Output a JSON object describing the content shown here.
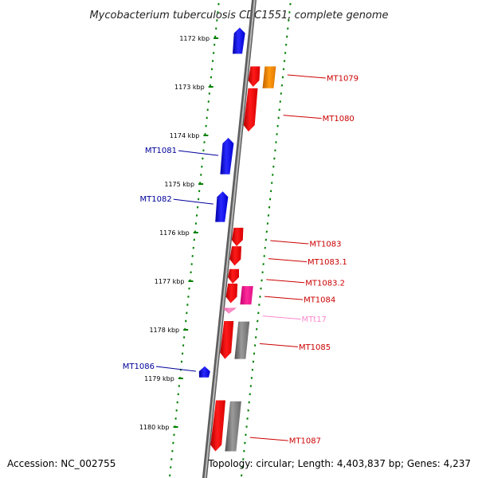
{
  "title": "Mycobacterium tuberculosis CDC1551, complete genome",
  "accession": "Accession: NC_002755",
  "topology": "Topology: circular; Length: 4,403,837 bp; Genes: 4,237",
  "colors": {
    "backbone": "#808080",
    "ticks": "#008000",
    "minus_strand_gene": "#0000ff",
    "plus_strand_gene": "#ff0000",
    "orange_feature": "#ff8c00",
    "magenta_feature": "#ff1493",
    "trna": "#ff69b4",
    "gray_feature": "#808080",
    "label_red": "#cc0000",
    "label_blue": "#000099",
    "label_pink": "#ff88cc"
  },
  "kbp_ticks": [
    {
      "label": "1172 kbp",
      "kbp": 1172
    },
    {
      "label": "1173 kbp",
      "kbp": 1173
    },
    {
      "label": "1174 kbp",
      "kbp": 1174
    },
    {
      "label": "1175 kbp",
      "kbp": 1175
    },
    {
      "label": "1176 kbp",
      "kbp": 1176
    },
    {
      "label": "1177 kbp",
      "kbp": 1177
    },
    {
      "label": "1178 kbp",
      "kbp": 1178
    },
    {
      "label": "1179 kbp",
      "kbp": 1179
    },
    {
      "label": "1180 kbp",
      "kbp": 1180
    }
  ],
  "features": [
    {
      "name": "",
      "strand": "minus",
      "color": "blue",
      "start_kbp": 1171.78,
      "end_kbp": 1172.32,
      "label_kbp": null
    },
    {
      "name": "MT1079",
      "strand": "plus",
      "color": "red",
      "start_kbp": 1172.58,
      "end_kbp": 1173.0,
      "label_kbp": 1172.82
    },
    {
      "name": "",
      "strand": "plus2",
      "color": "orange",
      "start_kbp": 1172.58,
      "end_kbp": 1173.03,
      "label_kbp": null
    },
    {
      "name": "MT1080",
      "strand": "plus",
      "color": "red",
      "start_kbp": 1173.03,
      "end_kbp": 1173.92,
      "label_kbp": 1173.65
    },
    {
      "name": "MT1081",
      "strand": "minus",
      "color": "blue",
      "start_kbp": 1174.05,
      "end_kbp": 1174.8,
      "label_kbp": 1174.38
    },
    {
      "name": "MT1082",
      "strand": "minus",
      "color": "blue",
      "start_kbp": 1175.15,
      "end_kbp": 1175.78,
      "label_kbp": 1175.38
    },
    {
      "name": "MT1083",
      "strand": "plus",
      "color": "red",
      "start_kbp": 1175.9,
      "end_kbp": 1176.28,
      "label_kbp": 1176.23
    },
    {
      "name": "MT1083.1",
      "strand": "plus",
      "color": "red",
      "start_kbp": 1176.28,
      "end_kbp": 1176.68,
      "label_kbp": 1176.6
    },
    {
      "name": "MT1083.2",
      "strand": "plus",
      "color": "red",
      "start_kbp": 1176.75,
      "end_kbp": 1177.05,
      "label_kbp": 1177.03
    },
    {
      "name": "MT1084",
      "strand": "plus",
      "color": "red",
      "start_kbp": 1177.05,
      "end_kbp": 1177.45,
      "label_kbp": 1177.38
    },
    {
      "name": "",
      "strand": "plus2",
      "color": "magenta",
      "start_kbp": 1177.1,
      "end_kbp": 1177.48,
      "label_kbp": null
    },
    {
      "name": "MTt17",
      "strand": "plus",
      "color": "trna",
      "start_kbp": 1177.58,
      "end_kbp": 1177.66,
      "label_kbp": 1177.78
    },
    {
      "name": "MT1085",
      "strand": "plus",
      "color": "red",
      "start_kbp": 1177.82,
      "end_kbp": 1178.6,
      "label_kbp": 1178.35
    },
    {
      "name": "",
      "strand": "plus2",
      "color": "gray",
      "start_kbp": 1177.83,
      "end_kbp": 1178.6,
      "label_kbp": null
    },
    {
      "name": "MT1086",
      "strand": "minus",
      "color": "blue",
      "start_kbp": 1178.75,
      "end_kbp": 1178.98,
      "label_kbp": 1178.82
    },
    {
      "name": "MT1087",
      "strand": "plus",
      "color": "red",
      "start_kbp": 1179.45,
      "end_kbp": 1180.5,
      "label_kbp": 1180.28
    },
    {
      "name": "",
      "strand": "plus2",
      "color": "gray",
      "start_kbp": 1179.47,
      "end_kbp": 1180.5,
      "label_kbp": null
    }
  ]
}
